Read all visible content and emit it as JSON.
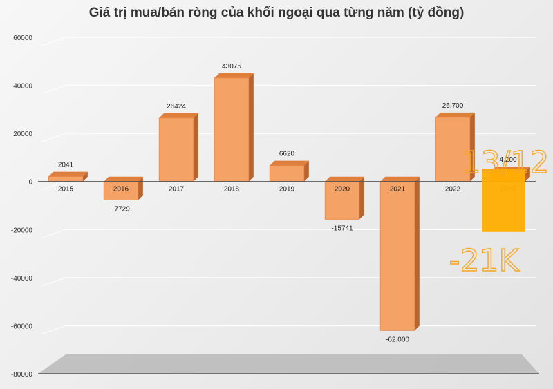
{
  "chart_data": {
    "type": "bar",
    "title": "Giá trị mua/bán ròng của khối ngoại qua từng năm (tỷ đồng)",
    "xlabel": "",
    "ylabel": "",
    "ylim": [
      -80000,
      60000
    ],
    "yticks": [
      "60000",
      "40000",
      "20000",
      "0",
      "-20000",
      "-40000",
      "-60000",
      "-80000"
    ],
    "grid": true,
    "legend": "none",
    "categories": [
      "2015",
      "2016",
      "2017",
      "2018",
      "2019",
      "2020",
      "2021",
      "2022",
      "2023"
    ],
    "values": [
      2041,
      -7729,
      26424,
      43075,
      6620,
      -15741,
      -62000,
      26700,
      4200
    ],
    "data_labels": [
      "2041",
      "-7729",
      "26424",
      "43075",
      "6620",
      "-15741",
      "-62.000",
      "26.700",
      "4.200"
    ],
    "bar_color": "#f4a266",
    "bar_side_color": "#b8642e",
    "annotation": {
      "overlay_value": -21000,
      "overlay_color": "#ffad00",
      "handwritten_top": "13/12",
      "handwritten_bottom": "-21K",
      "handwritten_color": "#f5a623"
    }
  }
}
